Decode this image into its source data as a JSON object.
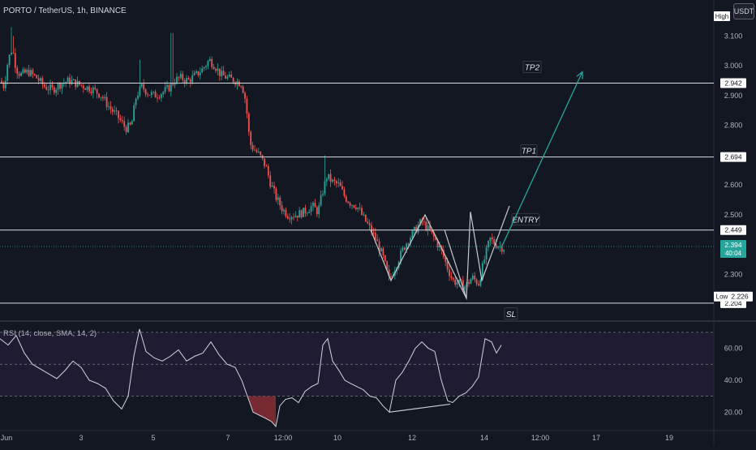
{
  "header": {
    "symbol_title": "PORTO / TetherUS, 1h, BINANCE",
    "currency": "USDT"
  },
  "chart_data": [
    {
      "type": "candlestick",
      "title": "PORTO / TetherUS, 1h, BINANCE",
      "x_ticks": [
        "Jun",
        "3",
        "5",
        "7",
        "12:00",
        "10",
        "12",
        "14",
        "12:00",
        "17",
        "19"
      ],
      "y_ticks": [
        "3.100",
        "3.000",
        "2.900",
        "2.800",
        "2.700",
        "2.600",
        "2.500",
        "2.400",
        "2.300",
        "2.200"
      ],
      "ylim": [
        2.16,
        3.15
      ],
      "price_path": [
        [
          0,
          2.95
        ],
        [
          5,
          2.93
        ],
        [
          10,
          3.02
        ],
        [
          15,
          3.06
        ],
        [
          20,
          2.99
        ],
        [
          25,
          2.97
        ],
        [
          35,
          2.98
        ],
        [
          45,
          2.96
        ],
        [
          55,
          2.93
        ],
        [
          65,
          2.92
        ],
        [
          75,
          2.94
        ],
        [
          85,
          2.95
        ],
        [
          95,
          2.94
        ],
        [
          105,
          2.93
        ],
        [
          115,
          2.92
        ],
        [
          125,
          2.9
        ],
        [
          135,
          2.86
        ],
        [
          145,
          2.83
        ],
        [
          155,
          2.79
        ],
        [
          162,
          2.8
        ],
        [
          168,
          2.9
        ],
        [
          175,
          2.93
        ],
        [
          182,
          2.91
        ],
        [
          190,
          2.9
        ],
        [
          200,
          2.91
        ],
        [
          210,
          2.93
        ],
        [
          215,
          2.95
        ],
        [
          222,
          2.96
        ],
        [
          232,
          2.95
        ],
        [
          242,
          2.97
        ],
        [
          250,
          2.99
        ],
        [
          258,
          3.02
        ],
        [
          265,
          3.0
        ],
        [
          272,
          2.97
        ],
        [
          280,
          2.96
        ],
        [
          290,
          2.95
        ],
        [
          298,
          2.94
        ],
        [
          303,
          2.88
        ],
        [
          308,
          2.74
        ],
        [
          313,
          2.72
        ],
        [
          320,
          2.7
        ],
        [
          328,
          2.66
        ],
        [
          333,
          2.61
        ],
        [
          340,
          2.56
        ],
        [
          348,
          2.52
        ],
        [
          355,
          2.5
        ],
        [
          365,
          2.5
        ],
        [
          375,
          2.51
        ],
        [
          385,
          2.53
        ],
        [
          392,
          2.51
        ],
        [
          398,
          2.58
        ],
        [
          403,
          2.63
        ],
        [
          410,
          2.61
        ],
        [
          418,
          2.6
        ],
        [
          425,
          2.56
        ],
        [
          432,
          2.54
        ],
        [
          440,
          2.53
        ],
        [
          448,
          2.49
        ],
        [
          455,
          2.46
        ],
        [
          463,
          2.42
        ],
        [
          472,
          2.36
        ],
        [
          480,
          2.28
        ],
        [
          488,
          2.33
        ],
        [
          496,
          2.38
        ],
        [
          504,
          2.42
        ],
        [
          512,
          2.45
        ],
        [
          520,
          2.48
        ],
        [
          528,
          2.45
        ],
        [
          536,
          2.42
        ],
        [
          544,
          2.38
        ],
        [
          552,
          2.32
        ],
        [
          558,
          2.28
        ],
        [
          566,
          2.27
        ],
        [
          574,
          2.26
        ],
        [
          582,
          2.29
        ],
        [
          590,
          2.27
        ],
        [
          598,
          2.36
        ],
        [
          604,
          2.42
        ],
        [
          612,
          2.4
        ],
        [
          620,
          2.39
        ]
      ],
      "horizontal_levels": [
        {
          "name": "TP2",
          "price": 2.942,
          "label": "2.942"
        },
        {
          "name": "TP1",
          "price": 2.694,
          "label": "2.694"
        },
        {
          "name": "ENTRY",
          "price": 2.449,
          "label": "2.449"
        },
        {
          "name": "SL",
          "price": 2.204,
          "label": "2.204"
        }
      ],
      "annotations": [
        {
          "text": "TP2"
        },
        {
          "text": "TP1"
        },
        {
          "text": "ENTRY"
        },
        {
          "text": "SL"
        }
      ],
      "last_price": {
        "label": "2.394",
        "countdown": "40:04",
        "price": 2.394
      },
      "high": {
        "label": "High"
      },
      "low": {
        "label": "Low",
        "value": "2.226",
        "price": 2.226
      },
      "pattern_lines": [
        [
          [
            457,
            2.45
          ],
          [
            482,
            2.28
          ],
          [
            524,
            2.5
          ],
          [
            575,
            2.22
          ],
          [
            580,
            2.51
          ],
          [
            594,
            2.28
          ],
          [
            628,
            2.53
          ]
        ],
        [
          [
            548,
            2.45
          ],
          [
            575,
            2.22
          ]
        ]
      ],
      "projection": {
        "from": [
          618,
          2.39
        ],
        "to": [
          718,
          2.98
        ]
      },
      "colors": {
        "up": "#26a69a",
        "down": "#ef5350",
        "background": "#131722",
        "line": "#d1d4dc",
        "projection": "#26a69a"
      }
    },
    {
      "type": "line",
      "title": "RSI (14, close, SMA, 14, 2)",
      "y_ticks": [
        "60.00",
        "40.00",
        "20.00"
      ],
      "ylim": [
        10,
        75
      ],
      "bands": [
        70,
        50,
        30
      ],
      "rsi_path": [
        [
          0,
          66
        ],
        [
          10,
          62
        ],
        [
          20,
          68
        ],
        [
          30,
          57
        ],
        [
          40,
          50
        ],
        [
          50,
          47
        ],
        [
          60,
          44
        ],
        [
          70,
          41
        ],
        [
          80,
          46
        ],
        [
          90,
          52
        ],
        [
          100,
          48
        ],
        [
          110,
          40
        ],
        [
          120,
          38
        ],
        [
          130,
          35
        ],
        [
          140,
          27
        ],
        [
          150,
          22
        ],
        [
          158,
          30
        ],
        [
          165,
          55
        ],
        [
          172,
          72
        ],
        [
          180,
          58
        ],
        [
          190,
          54
        ],
        [
          200,
          52
        ],
        [
          210,
          55
        ],
        [
          220,
          59
        ],
        [
          230,
          52
        ],
        [
          240,
          55
        ],
        [
          250,
          57
        ],
        [
          260,
          64
        ],
        [
          270,
          56
        ],
        [
          280,
          50
        ],
        [
          290,
          48
        ],
        [
          298,
          40
        ],
        [
          305,
          30
        ],
        [
          312,
          20
        ],
        [
          320,
          18
        ],
        [
          328,
          16
        ],
        [
          335,
          14
        ],
        [
          340,
          11
        ],
        [
          345,
          24
        ],
        [
          352,
          28
        ],
        [
          360,
          29
        ],
        [
          368,
          26
        ],
        [
          376,
          33
        ],
        [
          384,
          36
        ],
        [
          392,
          38
        ],
        [
          398,
          62
        ],
        [
          404,
          66
        ],
        [
          410,
          52
        ],
        [
          418,
          46
        ],
        [
          425,
          40
        ],
        [
          432,
          38
        ],
        [
          440,
          36
        ],
        [
          448,
          34
        ],
        [
          456,
          30
        ],
        [
          464,
          29
        ],
        [
          472,
          24
        ],
        [
          480,
          20
        ],
        [
          488,
          40
        ],
        [
          496,
          45
        ],
        [
          504,
          52
        ],
        [
          512,
          60
        ],
        [
          520,
          64
        ],
        [
          528,
          60
        ],
        [
          536,
          58
        ],
        [
          544,
          40
        ],
        [
          552,
          27
        ],
        [
          558,
          26
        ],
        [
          566,
          30
        ],
        [
          574,
          32
        ],
        [
          582,
          36
        ],
        [
          590,
          42
        ],
        [
          598,
          66
        ],
        [
          606,
          64
        ],
        [
          612,
          57
        ],
        [
          618,
          62
        ]
      ],
      "divergence_line": [
        [
          480,
          20
        ],
        [
          555,
          25
        ]
      ],
      "oversold_fill_range": [
        305,
        342
      ],
      "colors": {
        "line": "#d1d4dc",
        "band_fill": "#2a2140",
        "oversold_fill": "#8b2e35"
      }
    }
  ]
}
